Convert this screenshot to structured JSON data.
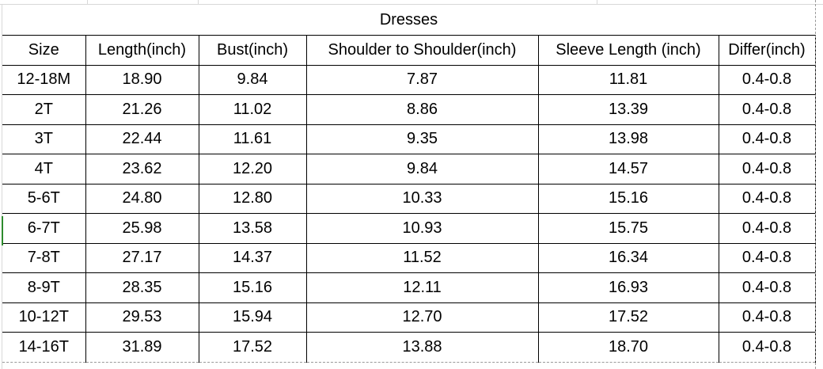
{
  "title": "Dresses",
  "headers": [
    "Size",
    "Length(inch)",
    "Bust(inch)",
    "Shoulder to Shoulder(inch)",
    "Sleeve Length (inch)",
    "Differ(inch)"
  ],
  "rows": [
    [
      "12-18M",
      "18.90",
      "9.84",
      "7.87",
      "11.81",
      "0.4-0.8"
    ],
    [
      "2T",
      "21.26",
      "11.02",
      "8.86",
      "13.39",
      "0.4-0.8"
    ],
    [
      "3T",
      "22.44",
      "11.61",
      "9.35",
      "13.98",
      "0.4-0.8"
    ],
    [
      "4T",
      "23.62",
      "12.20",
      "9.84",
      "14.57",
      "0.4-0.8"
    ],
    [
      "5-6T",
      "24.80",
      "12.80",
      "10.33",
      "15.16",
      "0.4-0.8"
    ],
    [
      "6-7T",
      "25.98",
      "13.58",
      "10.93",
      "15.75",
      "0.4-0.8"
    ],
    [
      "7-8T",
      "27.17",
      "14.37",
      "11.52",
      "16.34",
      "0.4-0.8"
    ],
    [
      "8-9T",
      "28.35",
      "15.16",
      "12.11",
      "16.93",
      "0.4-0.8"
    ],
    [
      "10-12T",
      "29.53",
      "15.94",
      "12.70",
      "17.52",
      "0.4-0.8"
    ],
    [
      "14-16T",
      "31.89",
      "17.52",
      "13.88",
      "18.70",
      "0.4-0.8"
    ]
  ]
}
